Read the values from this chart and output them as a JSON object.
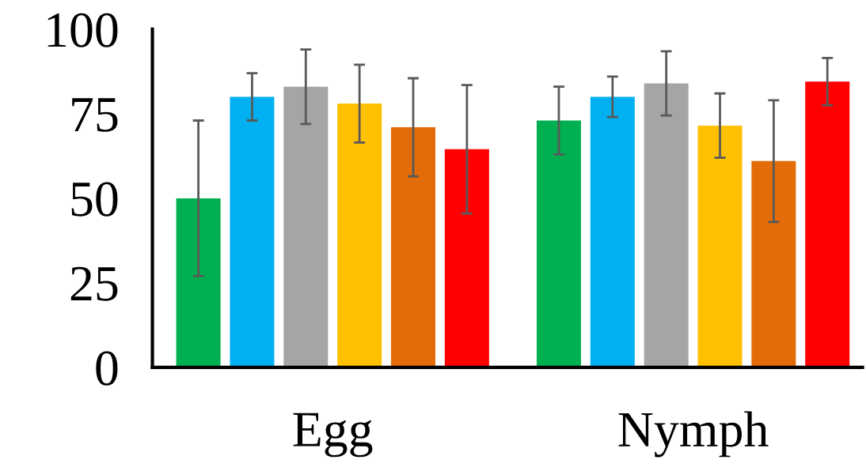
{
  "chart_data": {
    "type": "bar",
    "categories": [
      "Egg",
      "Nymph"
    ],
    "ylim": [
      0,
      100
    ],
    "yticks": [
      0,
      25,
      50,
      75,
      100
    ],
    "grid": false,
    "legend": false,
    "series": [
      {
        "color": "#00b050",
        "values": [
          50,
          73
        ],
        "errors": [
          23,
          10
        ]
      },
      {
        "color": "#00b0f0",
        "values": [
          80,
          80
        ],
        "errors": [
          7,
          6
        ]
      },
      {
        "color": "#a5a5a5",
        "values": [
          83,
          84
        ],
        "errors": [
          11,
          9.5
        ]
      },
      {
        "color": "#ffc000",
        "values": [
          78,
          71.5
        ],
        "errors": [
          11.5,
          9.5
        ]
      },
      {
        "color": "#e36c09",
        "values": [
          71,
          61
        ],
        "errors": [
          14.5,
          18
        ]
      },
      {
        "color": "#ff0000",
        "values": [
          64.5,
          84.5
        ],
        "errors": [
          19,
          7
        ]
      }
    ]
  }
}
